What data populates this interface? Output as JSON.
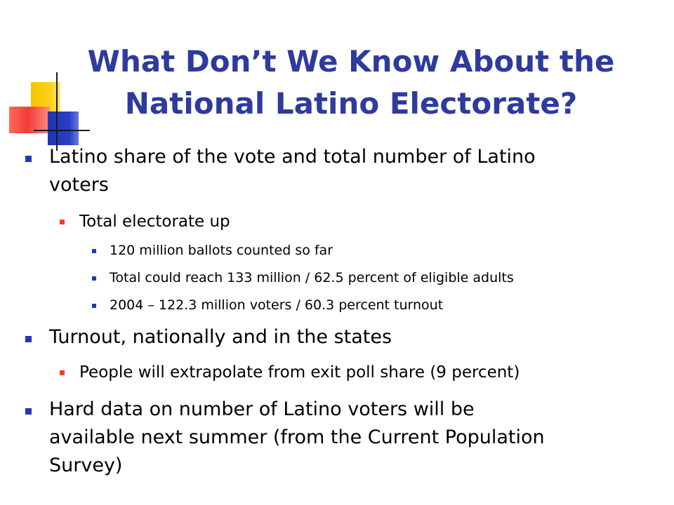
{
  "slide": {
    "title_line1": "What Don’t We Know About the",
    "title_line2": "National Latino Electorate?",
    "colors": {
      "title": "#2e3a9e",
      "bullet_l1": "#1f3ab8",
      "bullet_l2": "#ff3b1f",
      "bullet_l3": "#1f3ab8"
    },
    "bullets": [
      {
        "level": 1,
        "lines": [
          "Latino share of the vote and total number of Latino",
          "voters"
        ]
      },
      {
        "level": 2,
        "text": "Total electorate up"
      },
      {
        "level": 3,
        "text": "120 million ballots counted so far"
      },
      {
        "level": 3,
        "text": "Total could reach 133 million / 62.5 percent of eligible adults"
      },
      {
        "level": 3,
        "text": "2004 – 122.3 million voters / 60.3 percent turnout"
      },
      {
        "level": 1,
        "text": "Turnout, nationally and in the states"
      },
      {
        "level": 2,
        "text": "People will extrapolate from exit poll share (9 percent)"
      },
      {
        "level": 1,
        "lines": [
          "Hard data on number of Latino voters will be",
          "available next summer (from the Current Population",
          "Survey)"
        ]
      }
    ]
  }
}
